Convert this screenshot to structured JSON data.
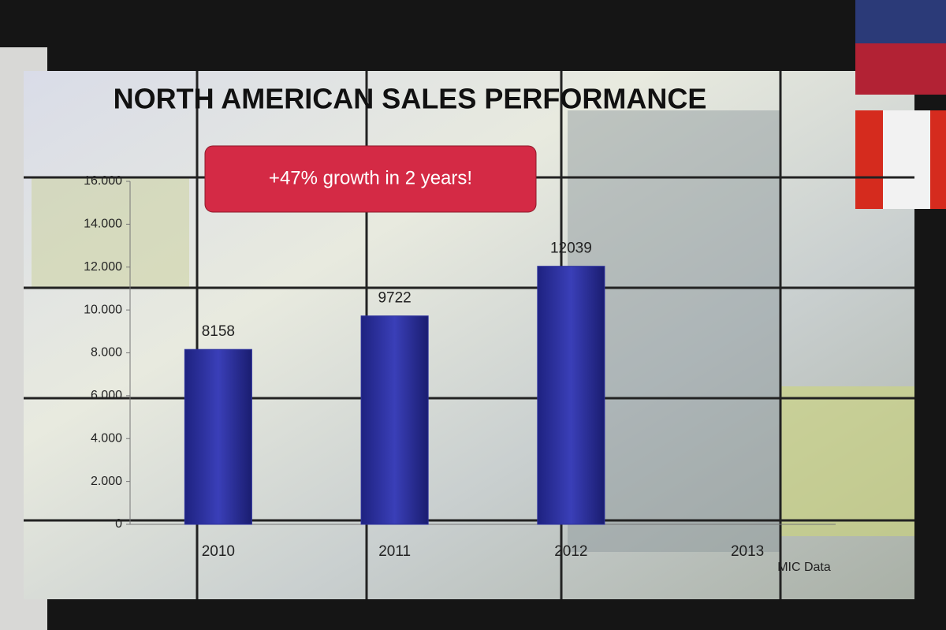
{
  "chart_data": {
    "type": "bar",
    "title": "NORTH AMERICAN SALES PERFORMANCE",
    "annotation": "+47% growth in 2 years!",
    "source": "MIC Data",
    "categories": [
      "2010",
      "2011",
      "2012",
      "2013"
    ],
    "values": [
      8158,
      9722,
      12039,
      null
    ],
    "color": "#2b2f9c",
    "ylim": [
      0,
      16000
    ],
    "yticks": [
      0,
      {
        "value": 2000,
        "label": "2.000"
      },
      {
        "value": 4000,
        "label": "4.000"
      },
      {
        "value": 6000,
        "label": "6.000"
      },
      {
        "value": 8000,
        "label": "8.000"
      },
      {
        "value": 10000,
        "label": "10.000"
      },
      {
        "value": 12000,
        "label": "12.000"
      },
      {
        "value": 14000,
        "label": "14.000"
      },
      {
        "value": 16000,
        "label": "16.000"
      }
    ],
    "grid": false
  }
}
